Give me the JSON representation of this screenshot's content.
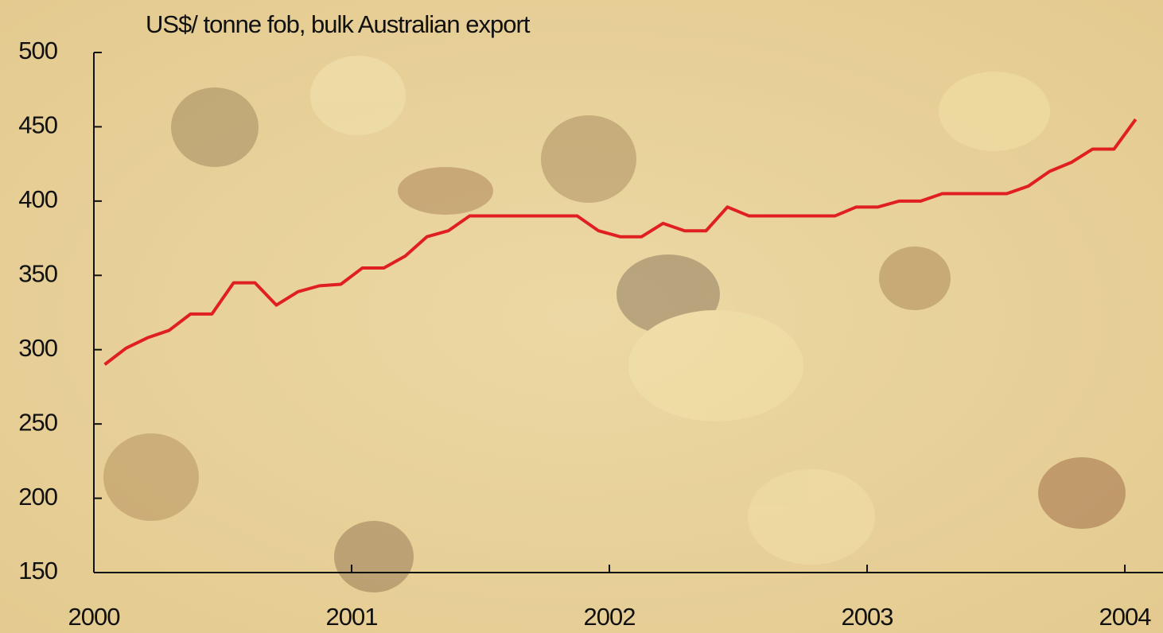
{
  "chart_data": {
    "type": "line",
    "title": "US$/ tonne fob, bulk Australian export",
    "x": [
      2000.042,
      2000.125,
      2000.208,
      2000.292,
      2000.375,
      2000.458,
      2000.542,
      2000.625,
      2000.708,
      2000.792,
      2000.875,
      2000.958,
      2001.042,
      2001.125,
      2001.208,
      2001.292,
      2001.375,
      2001.458,
      2001.542,
      2001.625,
      2001.708,
      2001.792,
      2001.875,
      2001.958,
      2002.042,
      2002.125,
      2002.208,
      2002.292,
      2002.375,
      2002.458,
      2002.542,
      2002.625,
      2002.708,
      2002.792,
      2002.875,
      2002.958,
      2003.042,
      2003.125,
      2003.208,
      2003.292,
      2003.375,
      2003.458,
      2003.542,
      2003.625,
      2003.708,
      2003.792,
      2003.875,
      2003.958,
      2004.042
    ],
    "values": [
      290,
      301,
      308,
      313,
      324,
      324,
      345,
      345,
      330,
      339,
      343,
      344,
      355,
      355,
      363,
      376,
      380,
      390,
      390,
      390,
      390,
      390,
      390,
      380,
      376,
      376,
      385,
      380,
      380,
      396,
      390,
      390,
      390,
      390,
      390,
      396,
      396,
      400,
      400,
      405,
      405,
      405,
      405,
      410,
      420,
      426,
      435,
      435,
      455
    ],
    "color": "#e02020",
    "xlim": [
      2000,
      2004.148
    ],
    "xticks": [
      2000,
      2001,
      2002,
      2003,
      2004
    ],
    "ylim": [
      150,
      500
    ],
    "yticks": [
      150,
      200,
      250,
      300,
      350,
      400,
      450,
      500
    ],
    "grid": false
  }
}
